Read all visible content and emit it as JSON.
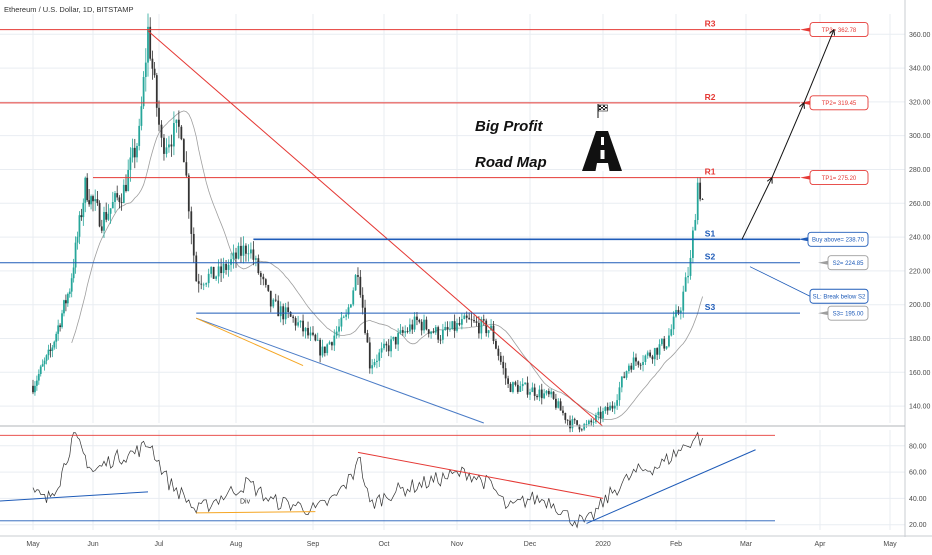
{
  "header": {
    "title": "Ethereum / U.S. Dollar, 1D, BITSTAMP"
  },
  "chart_data": [
    {
      "type": "candlestick",
      "title": "Ethereum / U.S. Dollar, 1D, BITSTAMP",
      "x_ticks": [
        "May",
        "Jun",
        "Jul",
        "Aug",
        "Sep",
        "Oct",
        "Nov",
        "Dec",
        "2020",
        "Feb",
        "Mar",
        "Apr",
        "May"
      ],
      "y_ticks": [
        140,
        160,
        180,
        200,
        220,
        240,
        260,
        280,
        300,
        320,
        340,
        360
      ],
      "y_tick_labels": [
        "140.00",
        "160.00",
        "180.00",
        "200.00",
        "220.00",
        "240.00",
        "260.00",
        "280.00",
        "300.00",
        "320.00",
        "340.00",
        "360.00"
      ],
      "ylim": [
        130,
        372
      ],
      "grid": true,
      "price_path": [
        [
          "2019-05-01",
          152
        ],
        [
          "2019-05-10",
          172
        ],
        [
          "2019-05-20",
          210
        ],
        [
          "2019-05-28",
          270
        ],
        [
          "2019-06-05",
          250
        ],
        [
          "2019-06-15",
          268
        ],
        [
          "2019-06-22",
          300
        ],
        [
          "2019-06-26",
          362
        ],
        [
          "2019-07-02",
          295
        ],
        [
          "2019-07-10",
          305
        ],
        [
          "2019-07-16",
          215
        ],
        [
          "2019-07-25",
          218
        ],
        [
          "2019-08-06",
          235
        ],
        [
          "2019-08-15",
          200
        ],
        [
          "2019-08-25",
          190
        ],
        [
          "2019-09-05",
          172
        ],
        [
          "2019-09-15",
          192
        ],
        [
          "2019-09-20",
          222
        ],
        [
          "2019-09-25",
          165
        ],
        [
          "2019-10-05",
          178
        ],
        [
          "2019-10-15",
          190
        ],
        [
          "2019-10-25",
          182
        ],
        [
          "2019-11-05",
          190
        ],
        [
          "2019-11-15",
          185
        ],
        [
          "2019-11-22",
          152
        ],
        [
          "2019-12-01",
          150
        ],
        [
          "2019-12-10",
          145
        ],
        [
          "2019-12-18",
          130
        ],
        [
          "2019-12-25",
          128
        ],
        [
          "2020-01-05",
          140
        ],
        [
          "2020-01-12",
          165
        ],
        [
          "2020-01-20",
          170
        ],
        [
          "2020-01-28",
          178
        ],
        [
          "2020-02-03",
          200
        ],
        [
          "2020-02-07",
          225
        ],
        [
          "2020-02-10",
          272
        ],
        [
          "2020-02-12",
          262
        ]
      ],
      "levels": [
        {
          "name": "R3",
          "value": 362.78,
          "color": "#e53935"
        },
        {
          "name": "R2",
          "value": 319.45,
          "color": "#e53935"
        },
        {
          "name": "R1",
          "value": 275.2,
          "color": "#e53935"
        },
        {
          "name": "S1",
          "value": 238.7,
          "color": "#1e5bb8"
        },
        {
          "name": "S2",
          "value": 224.85,
          "color": "#1e5bb8"
        },
        {
          "name": "S3",
          "value": 195.0,
          "color": "#1e5bb8"
        }
      ],
      "callouts": [
        {
          "label": "TP3= 362.78",
          "type": "target"
        },
        {
          "label": "TP2= 319.45",
          "type": "target"
        },
        {
          "label": "TP1= 275.20",
          "type": "target"
        },
        {
          "label": "Buy above= 238.70",
          "type": "entry"
        },
        {
          "label": "S2= 224.85",
          "type": "level"
        },
        {
          "label": "SL: Break below S2",
          "type": "stop"
        },
        {
          "label": "S3= 195.00",
          "type": "level"
        }
      ],
      "annotations": [
        "Big Profit",
        "Road Map"
      ],
      "colors": {
        "up": "#26a69a",
        "down": "#333333",
        "resistance": "#e53935",
        "support": "#1e5bb8",
        "target_box": "#e53935",
        "entry_box": "#1e5bb8"
      }
    },
    {
      "type": "line",
      "name": "oscillator",
      "y_ticks": [
        20,
        40,
        60,
        80
      ],
      "y_tick_labels": [
        "20.00",
        "40.00",
        "60.00",
        "80.00"
      ],
      "ylim": [
        16,
        92
      ],
      "series_path": [
        [
          "2019-05-01",
          45
        ],
        [
          "2019-05-08",
          38
        ],
        [
          "2019-05-15",
          55
        ],
        [
          "2019-05-22",
          88
        ],
        [
          "2019-06-01",
          60
        ],
        [
          "2019-06-10",
          70
        ],
        [
          "2019-06-20",
          75
        ],
        [
          "2019-06-27",
          82
        ],
        [
          "2019-07-05",
          52
        ],
        [
          "2019-07-12",
          40
        ],
        [
          "2019-07-16",
          30
        ],
        [
          "2019-07-25",
          40
        ],
        [
          "2019-08-06",
          52
        ],
        [
          "2019-08-15",
          38
        ],
        [
          "2019-08-25",
          35
        ],
        [
          "2019-09-02",
          31
        ],
        [
          "2019-09-10",
          40
        ],
        [
          "2019-09-18",
          58
        ],
        [
          "2019-09-20",
          75
        ],
        [
          "2019-09-25",
          35
        ],
        [
          "2019-10-05",
          45
        ],
        [
          "2019-10-15",
          50
        ],
        [
          "2019-10-25",
          55
        ],
        [
          "2019-11-05",
          60
        ],
        [
          "2019-11-15",
          50
        ],
        [
          "2019-11-22",
          32
        ],
        [
          "2019-12-01",
          40
        ],
        [
          "2019-12-10",
          38
        ],
        [
          "2019-12-18",
          25
        ],
        [
          "2019-12-25",
          21
        ],
        [
          "2020-01-05",
          45
        ],
        [
          "2020-01-15",
          60
        ],
        [
          "2020-01-25",
          65
        ],
        [
          "2020-02-05",
          80
        ],
        [
          "2020-02-10",
          88
        ],
        [
          "2020-02-12",
          82
        ]
      ],
      "annotations": [
        "Div"
      ]
    }
  ]
}
